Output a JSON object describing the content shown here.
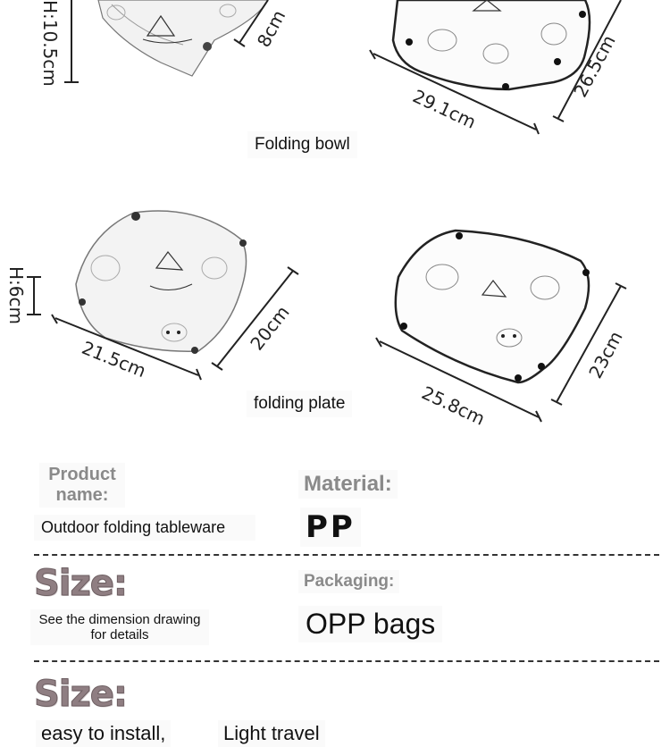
{
  "dimensions": {
    "bowl_height": "H:10.5cm",
    "bowl_small": "8cm",
    "bowl_length": "29.1cm",
    "bowl_width": "26.5cm",
    "plate_height": "H:6cm",
    "plate_small_length": "21.5cm",
    "plate_small_width": "20cm",
    "plate_length": "25.8cm",
    "plate_width": "23cm"
  },
  "captions": {
    "bowl": "Folding bowl",
    "plate": "folding plate"
  },
  "specs": {
    "product_name_label": "Product name:",
    "product_name_value": "Outdoor folding tableware",
    "material_label": "Material:",
    "material_value": "PP",
    "size_label": "Size:",
    "size_value": "See the dimension drawing for details",
    "packaging_label": "Packaging:",
    "packaging_value": "OPP bags",
    "size_label_2": "Size:",
    "feature_1": "easy to install,",
    "feature_2": "Light travel"
  },
  "colors": {
    "label_gray": "#8a8a8a",
    "size_title": "#8f7e82",
    "line": "#222222"
  }
}
